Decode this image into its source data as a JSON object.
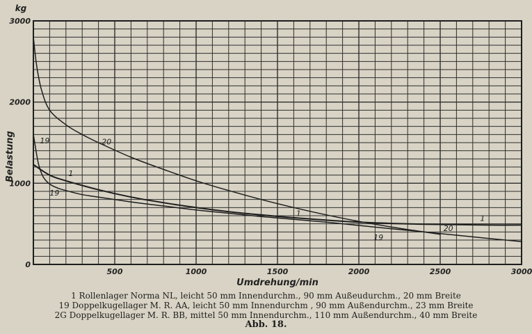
{
  "chart_data": {
    "type": "line",
    "unit_label": "kg",
    "xlabel": "Umdrehung/min",
    "ylabel": "Belastung",
    "xlim": [
      0,
      3000
    ],
    "ylim": [
      0,
      3000
    ],
    "x_ticks": [
      "500",
      "1000",
      "1500",
      "2000",
      "2500",
      "3000"
    ],
    "y_ticks": [
      "0",
      "1000",
      "2000",
      "3000"
    ],
    "grid": true,
    "series": [
      {
        "name": "1",
        "x": [
          0,
          100,
          200,
          400,
          600,
          800,
          1000,
          1200,
          1400,
          1600,
          1800,
          2000,
          2200,
          2400,
          2600,
          2800,
          3000
        ],
        "y": [
          1230,
          1100,
          1030,
          920,
          830,
          760,
          700,
          650,
          610,
          575,
          545,
          520,
          505,
          495,
          490,
          485,
          485
        ]
      },
      {
        "name": "19",
        "x": [
          0,
          30,
          60,
          100,
          150,
          200,
          300,
          400,
          600,
          800,
          1000,
          1200,
          1400,
          1600,
          1800,
          2000,
          2200,
          2400,
          2600,
          2800,
          3000
        ],
        "y": [
          1600,
          1250,
          1080,
          990,
          940,
          910,
          860,
          830,
          770,
          720,
          670,
          630,
          590,
          555,
          520,
          480,
          440,
          400,
          360,
          320,
          280
        ]
      },
      {
        "name": "20",
        "x": [
          0,
          20,
          50,
          100,
          200,
          300,
          400,
          600,
          800,
          1000,
          1200,
          1400,
          1600,
          1800,
          2000,
          2200,
          2400,
          2500
        ],
        "y": [
          2800,
          2450,
          2150,
          1900,
          1720,
          1600,
          1500,
          1320,
          1170,
          1030,
          910,
          800,
          700,
          610,
          530,
          460,
          400,
          370
        ]
      }
    ],
    "curve_labels": [
      {
        "text": "19",
        "x": 70,
        "y": 1490
      },
      {
        "text": "20",
        "x": 450,
        "y": 1480
      },
      {
        "text": "1",
        "x": 230,
        "y": 1090
      },
      {
        "text": "19",
        "x": 130,
        "y": 850
      },
      {
        "text": "1",
        "x": 1630,
        "y": 595
      },
      {
        "text": "1",
        "x": 2760,
        "y": 535
      },
      {
        "text": "20",
        "x": 2550,
        "y": 410
      },
      {
        "text": "19",
        "x": 2120,
        "y": 300
      }
    ]
  },
  "caption": {
    "line1": "1 Rollenlager Norma NL, leicht 50 mm Innendurchm., 90 mm Außeudurchm., 20 mm Breite",
    "line2": "19 Doppelkugellager M. R. AA, leicht 50 mm Innendurchm , 90 mm Außendurchm., 23 mm Breite",
    "line3": "2G Doppelkugellager M. R. BB, mittel 50 mm Innendurchm., 110 mm Außendurchm., 40 mm Breite",
    "figure_title": "Abb. 18."
  },
  "colors": {
    "paper": "#d8d3c4",
    "ink": "#1e1e1e",
    "grid": "#2e2e2e"
  }
}
